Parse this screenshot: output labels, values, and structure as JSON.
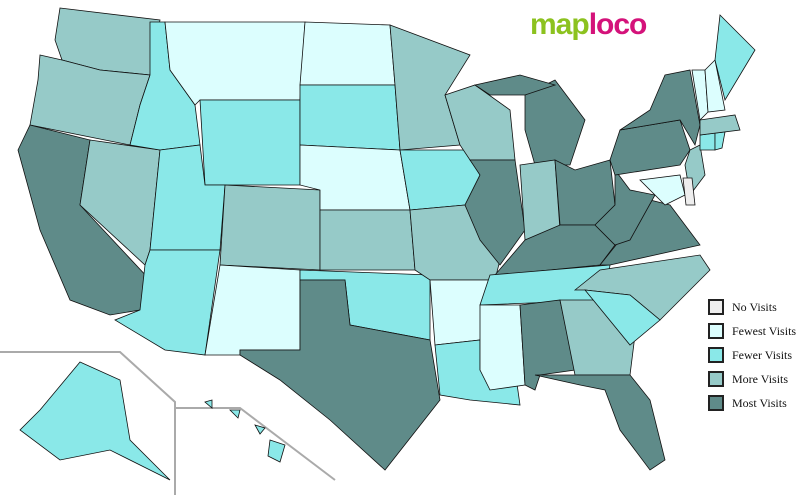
{
  "logo": {
    "part1": "map",
    "part2": "loco"
  },
  "colors": {
    "none": "#eeeeee",
    "fewest": "#dcfefe",
    "fewer": "#8ae8e8",
    "more": "#96cac8",
    "most": "#5f8b89"
  },
  "legend": [
    {
      "level": "none",
      "label": "No Visits"
    },
    {
      "level": "fewest",
      "label": "Fewest Visits"
    },
    {
      "level": "fewer",
      "label": "Fewer Visits"
    },
    {
      "level": "more",
      "label": "More Visits"
    },
    {
      "level": "most",
      "label": "Most Visits"
    }
  ],
  "states": {
    "WA": "more",
    "OR": "more",
    "CA": "most",
    "NV": "more",
    "ID": "fewer",
    "MT": "fewest",
    "WY": "fewer",
    "UT": "fewer",
    "AZ": "fewer",
    "CO": "more",
    "NM": "fewest",
    "ND": "fewest",
    "SD": "fewer",
    "NE": "fewest",
    "KS": "more",
    "OK": "fewer",
    "TX": "most",
    "MN": "more",
    "IA": "fewer",
    "MO": "more",
    "AR": "fewest",
    "LA": "fewer",
    "WI": "more",
    "IL": "most",
    "MI": "most",
    "IN": "more",
    "OH": "most",
    "KY": "most",
    "TN": "fewer",
    "MS": "fewest",
    "AL": "most",
    "GA": "more",
    "FL": "most",
    "SC": "fewer",
    "NC": "more",
    "VA": "most",
    "WV": "most",
    "PA": "most",
    "NY": "most",
    "NJ": "more",
    "DE": "none",
    "MD": "fewest",
    "CT": "fewer",
    "RI": "fewer",
    "MA": "more",
    "VT": "fewest",
    "NH": "fewest",
    "ME": "fewer",
    "AK": "fewer",
    "HI": "fewer"
  }
}
